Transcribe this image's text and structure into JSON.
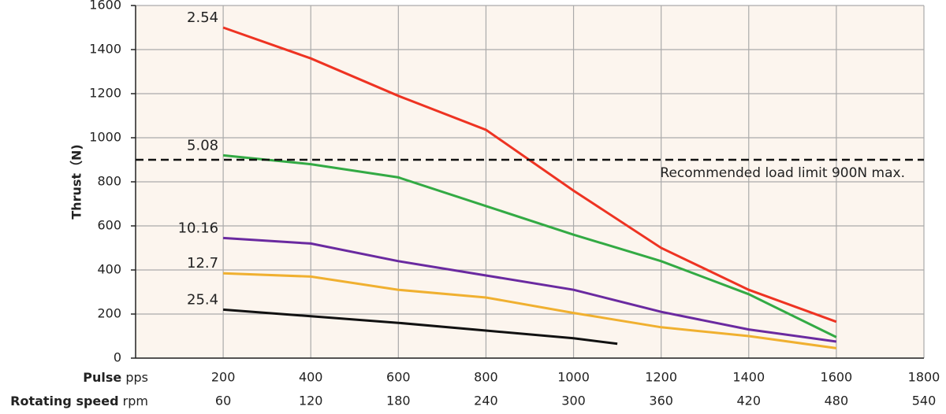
{
  "chart_data": {
    "type": "line",
    "y_axis_label": "Thrust（N)",
    "x_axis_label": "Pulse",
    "x_axis_unit": "pps",
    "x2_axis_label": "Rotating speed",
    "x2_axis_unit": "rpm",
    "xlim": [
      0,
      1800
    ],
    "xticks": [
      200,
      400,
      600,
      800,
      1000,
      1200,
      1400,
      1600,
      1800
    ],
    "x2ticks": [
      60,
      120,
      180,
      240,
      300,
      360,
      420,
      480,
      540
    ],
    "ylim": [
      0,
      1600
    ],
    "yticks": [
      0,
      200,
      400,
      600,
      800,
      1000,
      1200,
      1400,
      1600
    ],
    "grid": true,
    "reference_line": {
      "value": 900,
      "label": "Recommended load limit 900N max."
    },
    "series": [
      {
        "name": "2.54",
        "color": "#ee3322",
        "x": [
          200,
          400,
          600,
          800,
          1000,
          1200,
          1400,
          1600
        ],
        "values": [
          1500,
          1360,
          1190,
          1036,
          760,
          500,
          310,
          165
        ]
      },
      {
        "name": "5.08",
        "color": "#33aa44",
        "x": [
          200,
          400,
          600,
          800,
          1000,
          1200,
          1400,
          1600
        ],
        "values": [
          920,
          880,
          820,
          690,
          560,
          440,
          290,
          95
        ]
      },
      {
        "name": "10.16",
        "color": "#6a2aa0",
        "x": [
          200,
          400,
          600,
          800,
          1000,
          1200,
          1400,
          1600
        ],
        "values": [
          545,
          520,
          440,
          375,
          310,
          210,
          130,
          75
        ]
      },
      {
        "name": "12.7",
        "color": "#f0b030",
        "x": [
          200,
          400,
          600,
          800,
          1000,
          1200,
          1400,
          1600
        ],
        "values": [
          385,
          370,
          310,
          275,
          205,
          140,
          100,
          45
        ]
      },
      {
        "name": "25.4",
        "color": "#111111",
        "x": [
          200,
          400,
          600,
          800,
          1000,
          1100
        ],
        "values": [
          220,
          190,
          160,
          125,
          90,
          65
        ]
      }
    ]
  }
}
